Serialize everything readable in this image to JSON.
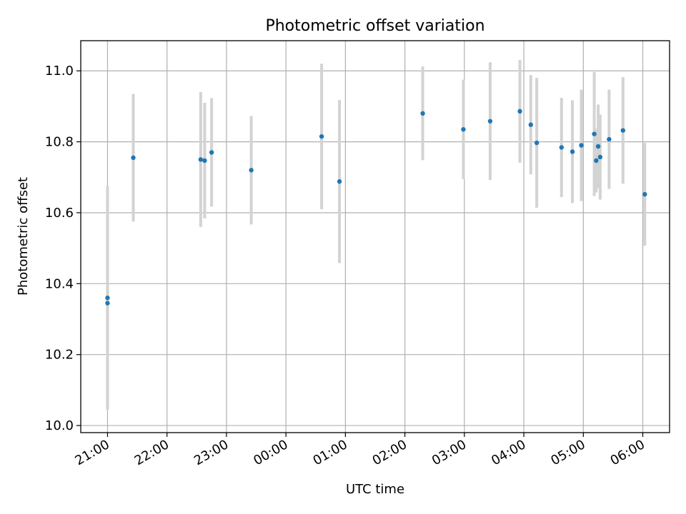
{
  "chart_data": {
    "type": "scatter",
    "title": "Photometric offset variation",
    "xlabel": "UTC time",
    "ylabel": "Photometric offset",
    "x_ticks": [
      "21:00",
      "22:00",
      "23:00",
      "00:00",
      "01:00",
      "02:00",
      "03:00",
      "04:00",
      "05:00",
      "06:00"
    ],
    "y_ticks": [
      "10.0",
      "10.2",
      "10.4",
      "10.6",
      "10.8",
      "11.0"
    ],
    "xlim": [
      "20:33",
      "06:27"
    ],
    "ylim": [
      9.98,
      11.085
    ],
    "grid": true,
    "colors": {
      "points": "#1f77b4",
      "errorbars": "#d3d3d3",
      "grid": "#b0b0b0"
    },
    "points": [
      {
        "x": "21:00",
        "y": 10.36,
        "err": 0.315
      },
      {
        "x": "21:00",
        "y": 10.345,
        "err": 0.3
      },
      {
        "x": "21:26",
        "y": 10.755,
        "err": 0.18
      },
      {
        "x": "22:34",
        "y": 10.75,
        "err": 0.19
      },
      {
        "x": "22:38",
        "y": 10.747,
        "err": 0.163
      },
      {
        "x": "22:45",
        "y": 10.77,
        "err": 0.153
      },
      {
        "x": "23:25",
        "y": 10.72,
        "err": 0.153
      },
      {
        "x": "00:36",
        "y": 10.815,
        "err": 0.205
      },
      {
        "x": "00:54",
        "y": 10.688,
        "err": 0.23
      },
      {
        "x": "02:18",
        "y": 10.88,
        "err": 0.132
      },
      {
        "x": "02:59",
        "y": 10.835,
        "err": 0.14
      },
      {
        "x": "03:26",
        "y": 10.858,
        "err": 0.166
      },
      {
        "x": "03:56",
        "y": 10.886,
        "err": 0.145
      },
      {
        "x": "04:07",
        "y": 10.848,
        "err": 0.14
      },
      {
        "x": "04:13",
        "y": 10.797,
        "err": 0.183
      },
      {
        "x": "04:38",
        "y": 10.784,
        "err": 0.14
      },
      {
        "x": "04:49",
        "y": 10.772,
        "err": 0.145
      },
      {
        "x": "04:58",
        "y": 10.79,
        "err": 0.157
      },
      {
        "x": "05:11",
        "y": 10.822,
        "err": 0.175
      },
      {
        "x": "05:13",
        "y": 10.747,
        "err": 0.09
      },
      {
        "x": "05:15",
        "y": 10.787,
        "err": 0.118
      },
      {
        "x": "05:17",
        "y": 10.757,
        "err": 0.12
      },
      {
        "x": "05:26",
        "y": 10.807,
        "err": 0.14
      },
      {
        "x": "05:40",
        "y": 10.832,
        "err": 0.15
      },
      {
        "x": "06:02",
        "y": 10.652,
        "err": 0.145
      }
    ]
  }
}
